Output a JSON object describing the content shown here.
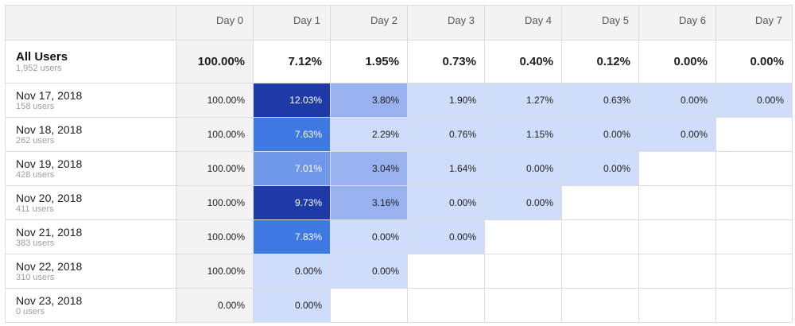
{
  "columns": [
    "Day 0",
    "Day 1",
    "Day 2",
    "Day 3",
    "Day 4",
    "Day 5",
    "Day 6",
    "Day 7"
  ],
  "all_users": {
    "label": "All Users",
    "users": "1,952 users",
    "values": [
      "100.00%",
      "7.12%",
      "1.95%",
      "0.73%",
      "0.40%",
      "0.12%",
      "0.00%",
      "0.00%"
    ]
  },
  "rows": [
    {
      "date": "Nov 17, 2018",
      "users": "158 users",
      "values": [
        "100.00%",
        "12.03%",
        "3.80%",
        "1.90%",
        "1.27%",
        "0.63%",
        "0.00%",
        "0.00%"
      ],
      "shades": [
        "d0",
        "dk",
        "l2",
        "l1",
        "l1",
        "l1",
        "l1",
        "l1"
      ]
    },
    {
      "date": "Nov 18, 2018",
      "users": "262 users",
      "values": [
        "100.00%",
        "7.63%",
        "2.29%",
        "0.76%",
        "1.15%",
        "0.00%",
        "0.00%",
        ""
      ],
      "shades": [
        "d0",
        "m2",
        "l1",
        "l1",
        "l1",
        "l1",
        "l1",
        "empty"
      ]
    },
    {
      "date": "Nov 19, 2018",
      "users": "428 users",
      "values": [
        "100.00%",
        "7.01%",
        "3.04%",
        "1.64%",
        "0.00%",
        "0.00%",
        "",
        ""
      ],
      "shades": [
        "d0",
        "m1",
        "l2",
        "l1",
        "l1",
        "l1",
        "empty",
        "empty"
      ]
    },
    {
      "date": "Nov 20, 2018",
      "users": "411 users",
      "values": [
        "100.00%",
        "9.73%",
        "3.16%",
        "0.00%",
        "0.00%",
        "",
        "",
        ""
      ],
      "shades": [
        "d0",
        "dk",
        "l2",
        "l1",
        "l1",
        "empty",
        "empty",
        "empty"
      ]
    },
    {
      "date": "Nov 21, 2018",
      "users": "383 users",
      "values": [
        "100.00%",
        "7.83%",
        "0.00%",
        "0.00%",
        "",
        "",
        "",
        ""
      ],
      "shades": [
        "d0",
        "m2",
        "l1",
        "l1",
        "empty",
        "empty",
        "empty",
        "empty"
      ]
    },
    {
      "date": "Nov 22, 2018",
      "users": "310 users",
      "values": [
        "100.00%",
        "0.00%",
        "0.00%",
        "",
        "",
        "",
        "",
        ""
      ],
      "shades": [
        "d0",
        "l1",
        "l1",
        "empty",
        "empty",
        "empty",
        "empty",
        "empty"
      ]
    },
    {
      "date": "Nov 23, 2018",
      "users": "0 users",
      "values": [
        "0.00%",
        "0.00%",
        "",
        "",
        "",
        "",
        "",
        ""
      ],
      "shades": [
        "d0",
        "l1",
        "empty",
        "empty",
        "empty",
        "empty",
        "empty",
        "empty"
      ]
    }
  ],
  "colors": {
    "header_bg": "#f3f3f3",
    "light": "#cfdcfa",
    "light2": "#97b2ee",
    "medium": "#6f98ea",
    "medium2": "#3d78e3",
    "dark": "#1e3aa7"
  }
}
